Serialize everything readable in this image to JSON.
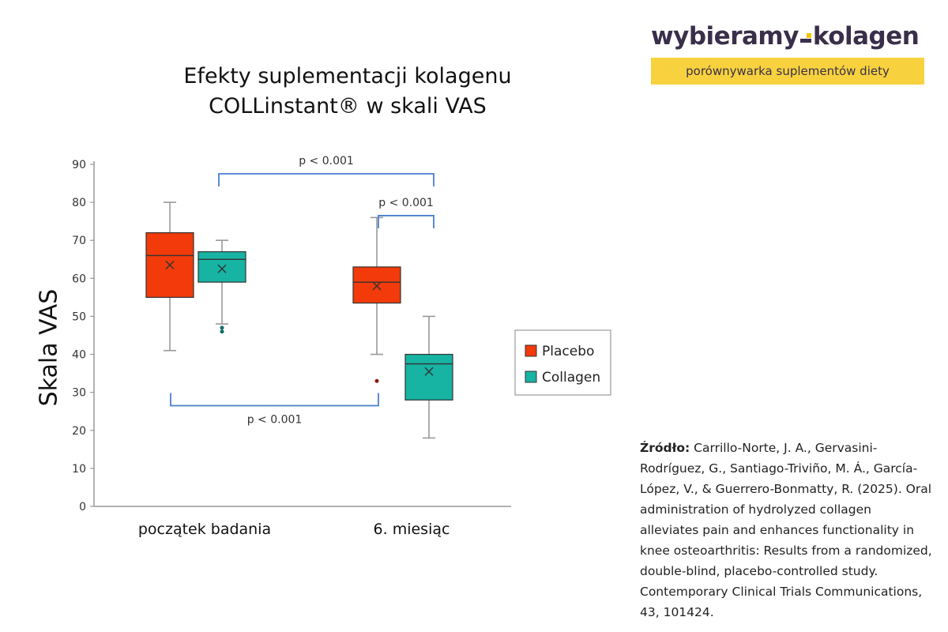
{
  "logo": {
    "text_left": "wybieramy",
    "text_right": "kolagen",
    "tagline": "porównywarka suplementów diety"
  },
  "title_line1": "Efekty suplementacji kolagenu",
  "title_line2": "COLLinstant® w skali VAS",
  "source_label": "Źródło:",
  "source_text": " Carrillo-Norte, J. A., Gervasini-Rodríguez, G., Santiago-Triviño, M. Á., García-López, V., & Guerrero-Bonmatty, R. (2025). Oral administration of hydrolyzed collagen alleviates pain and enhances functionality in knee osteoarthritis: Results from a randomized, double-blind, placebo-controlled study. Contemporary Clinical Trials Communications, 43, 101424.",
  "chart_data": {
    "type": "boxplot",
    "title": "Efekty suplementacji kolagenu COLLinstant® w skali VAS",
    "ylabel": "Skala VAS",
    "xlabel": "",
    "ylim": [
      0,
      90
    ],
    "yticks": [
      0,
      10,
      20,
      30,
      40,
      50,
      60,
      70,
      80,
      90
    ],
    "categories": [
      "początek badania",
      "6. miesiąc"
    ],
    "legend_position": "right",
    "series": [
      {
        "name": "Placebo",
        "color": "#f23a0a",
        "boxes": [
          {
            "min": 41,
            "q1": 55,
            "median": 66,
            "q3": 72,
            "max": 80,
            "mean": 63.5,
            "outliers": []
          },
          {
            "min": 40,
            "q1": 53.5,
            "median": 59,
            "q3": 63,
            "max": 76,
            "mean": 58,
            "outliers": [
              33
            ]
          }
        ]
      },
      {
        "name": "Collagen",
        "color": "#17b3a3",
        "boxes": [
          {
            "min": 48,
            "q1": 59,
            "median": 65,
            "q3": 67,
            "max": 70,
            "mean": 62.5,
            "outliers": [
              47,
              46
            ]
          },
          {
            "min": 18,
            "q1": 28,
            "median": 37.5,
            "q3": 40,
            "max": 50,
            "mean": 35.5,
            "outliers": []
          }
        ]
      }
    ],
    "annotations": [
      {
        "text": "p < 0.001",
        "between": [
          "początek badania / Collagen",
          "6. miesiąc / Collagen"
        ],
        "level": 87.5
      },
      {
        "text": "p < 0.001",
        "between": [
          "6. miesiąc / Placebo",
          "6. miesiąc / Collagen"
        ],
        "level": 76.5
      },
      {
        "text": "p < 0.001",
        "between": [
          "początek badania / Placebo",
          "6. miesiąc / Placebo"
        ],
        "level": 26.5
      }
    ]
  }
}
